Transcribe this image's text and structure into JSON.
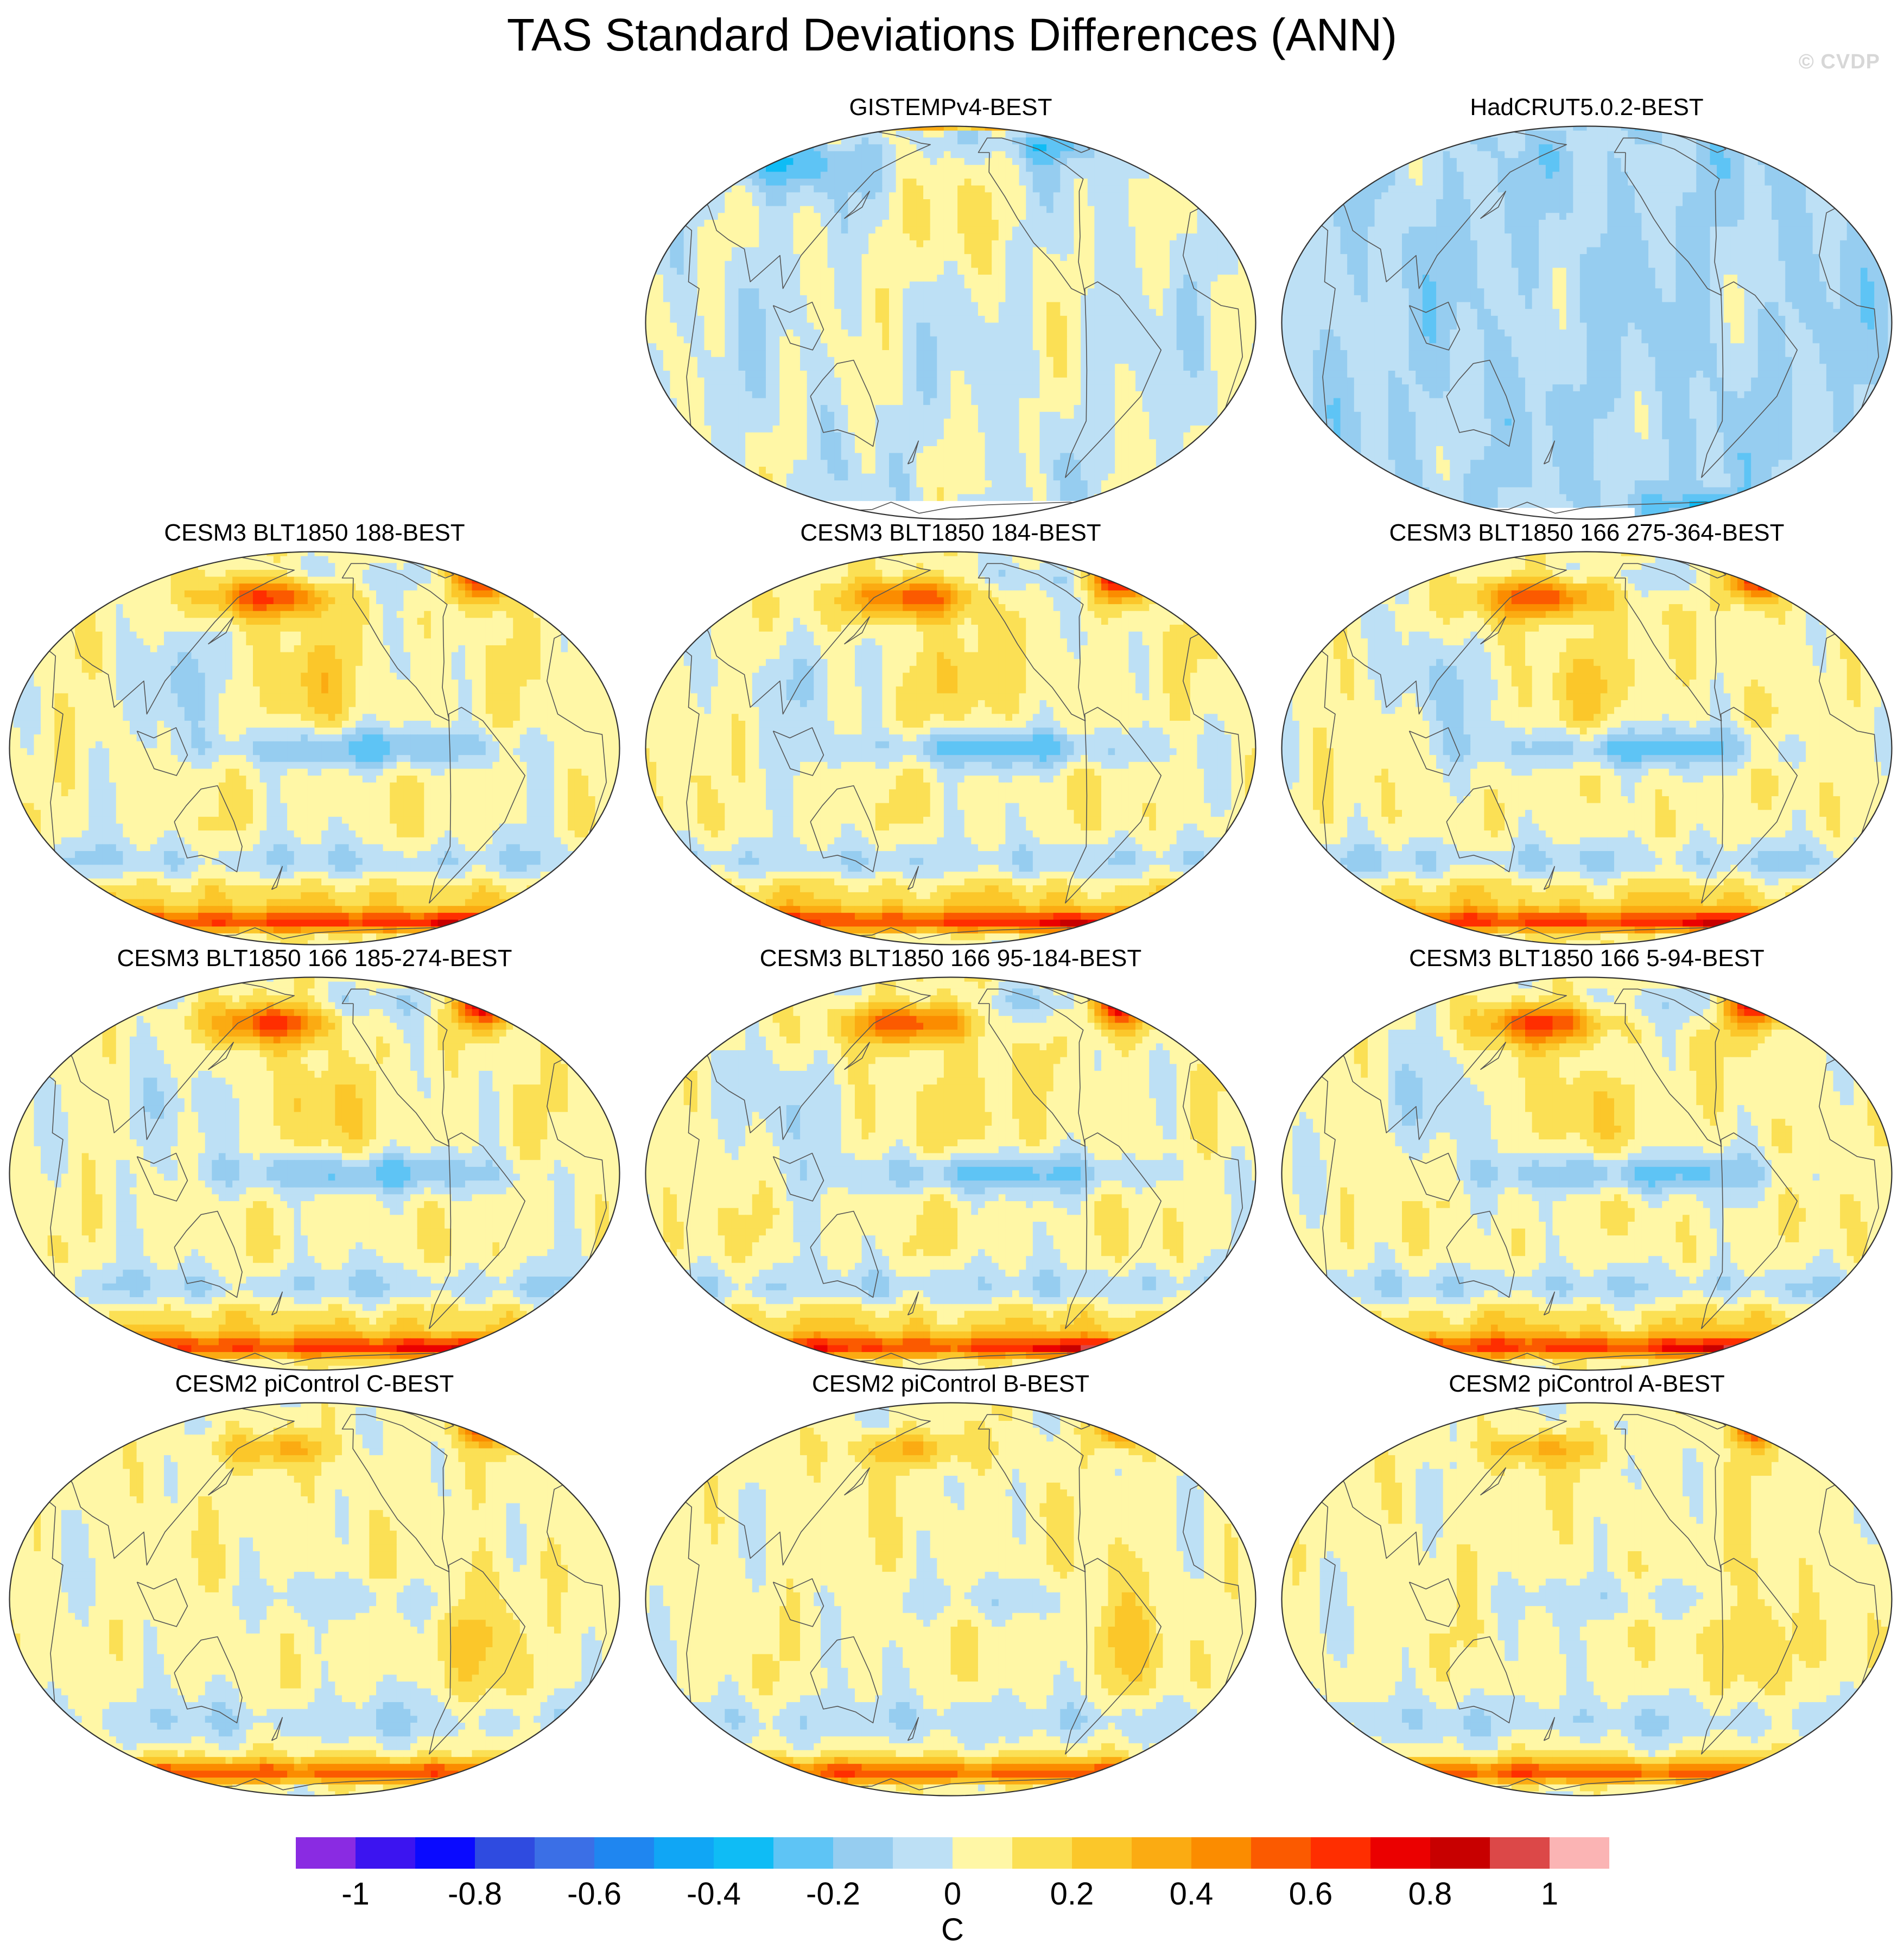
{
  "figure": {
    "title": "TAS Standard Deviations Differences (ANN)",
    "watermark": "© CVDP"
  },
  "panels": [
    {
      "label": "GISTEMPv4-BEST",
      "row": 0,
      "col": 1,
      "style": "gistemp"
    },
    {
      "label": "HadCRUT5.0.2-BEST",
      "row": 0,
      "col": 2,
      "style": "hadcrut"
    },
    {
      "label": "CESM3 BLT1850 188-BEST",
      "row": 1,
      "col": 0,
      "style": "cesm3"
    },
    {
      "label": "CESM3 BLT1850 184-BEST",
      "row": 1,
      "col": 1,
      "style": "cesm3"
    },
    {
      "label": "CESM3 BLT1850 166 275-364-BEST",
      "row": 1,
      "col": 2,
      "style": "cesm3"
    },
    {
      "label": "CESM3 BLT1850 166 185-274-BEST",
      "row": 2,
      "col": 0,
      "style": "cesm3"
    },
    {
      "label": "CESM3 BLT1850 166 95-184-BEST",
      "row": 2,
      "col": 1,
      "style": "cesm3"
    },
    {
      "label": "CESM3 BLT1850 166 5-94-BEST",
      "row": 2,
      "col": 2,
      "style": "cesm3"
    },
    {
      "label": "CESM2 piControl C-BEST",
      "row": 3,
      "col": 0,
      "style": "cesm2"
    },
    {
      "label": "CESM2 piControl B-BEST",
      "row": 3,
      "col": 1,
      "style": "cesm2"
    },
    {
      "label": "CESM2 piControl A-BEST",
      "row": 3,
      "col": 2,
      "style": "cesm2"
    }
  ],
  "colorbar": {
    "units": "C",
    "min": -1.1,
    "max": 1.1,
    "step": 0.1,
    "colors": [
      "#8a2be2",
      "#3c14f0",
      "#0a0aff",
      "#2f4be0",
      "#3b6fe6",
      "#1f86f0",
      "#10a6f5",
      "#0fbcf5",
      "#5ec4f5",
      "#96cdf0",
      "#bde0f5",
      "#fff7a6",
      "#fbe055",
      "#fbc72a",
      "#fbab12",
      "#fb8c00",
      "#fb5a00",
      "#ff2e00",
      "#eb0000",
      "#c80000",
      "#dc4848",
      "#fbb4b4"
    ],
    "tick_values": [
      -1,
      -0.8,
      -0.6,
      -0.4,
      -0.2,
      0,
      0.2,
      0.4,
      0.6,
      0.8,
      1
    ],
    "tick_labels": [
      "-1",
      "-0.8",
      "-0.6",
      "-0.4",
      "-0.2",
      "0",
      "0.2",
      "0.4",
      "0.6",
      "0.8",
      "1"
    ]
  }
}
